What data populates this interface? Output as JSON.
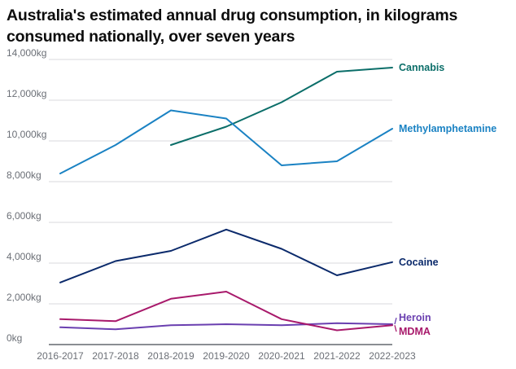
{
  "chart_data": {
    "type": "line",
    "title": "Australia's estimated annual drug consumption, in kilograms consumed nationally, over seven years",
    "xlabel": "",
    "ylabel": "",
    "categories": [
      "2016-2017",
      "2017-2018",
      "2018-2019",
      "2019-2020",
      "2020-2021",
      "2021-2022",
      "2022-2023"
    ],
    "ylim": [
      0,
      14000
    ],
    "yticks": [
      0,
      2000,
      4000,
      6000,
      8000,
      10000,
      12000,
      14000
    ],
    "ytick_labels": [
      "0kg",
      "2,000kg",
      "4,000kg",
      "6,000kg",
      "8,000kg",
      "10,000kg",
      "12,000kg",
      "14,000kg"
    ],
    "grid": true,
    "legend": "direct labels at right end of lines",
    "series": [
      {
        "name": "Cannabis",
        "color": "#0b6e69",
        "values": [
          null,
          null,
          9800,
          10700,
          11900,
          13400,
          13600
        ]
      },
      {
        "name": "Methylamphetamine",
        "color": "#1a82c3",
        "values": [
          8400,
          9800,
          11500,
          11100,
          8800,
          9000,
          10600
        ]
      },
      {
        "name": "Cocaine",
        "color": "#0b2a6b",
        "values": [
          3050,
          4100,
          4600,
          5650,
          4700,
          3400,
          4050
        ]
      },
      {
        "name": "Heroin",
        "color": "#6a3fb0",
        "values": [
          850,
          750,
          950,
          1000,
          950,
          1050,
          1000
        ]
      },
      {
        "name": "MDMA",
        "color": "#a8196b",
        "values": [
          1250,
          1150,
          2250,
          2600,
          1250,
          700,
          950
        ]
      }
    ]
  }
}
